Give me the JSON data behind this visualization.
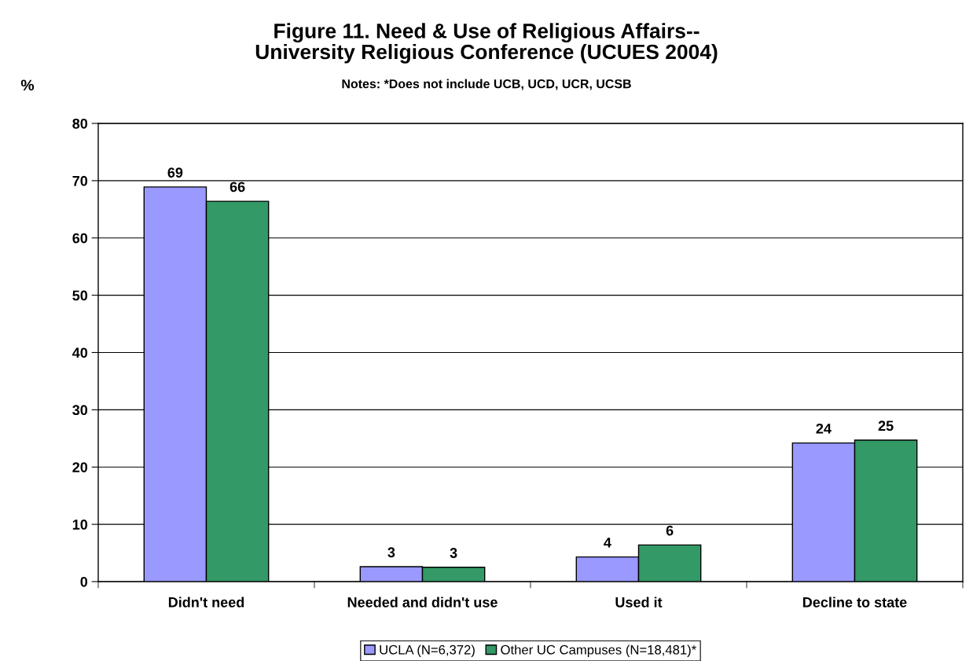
{
  "chart_data": {
    "type": "bar",
    "title": "Figure 11. Need & Use of Religious Affairs--\nUniversity Religious Conference (UCUES 2004)",
    "subtitle": "Notes: *Does not include UCB, UCD, UCR, UCSB",
    "ylabel": "%",
    "categories": [
      "Didn't need",
      "Needed and didn't use",
      "Used it",
      "Decline to state"
    ],
    "series": [
      {
        "name": "UCLA (N=6,372)",
        "color": "#9999ff",
        "values": [
          68.9,
          2.6,
          4.3,
          24.2
        ],
        "value_labels": [
          "69",
          "3",
          "4",
          "24"
        ]
      },
      {
        "name": "Other UC Campuses (N=18,481)*",
        "color": "#339966",
        "values": [
          66.4,
          2.5,
          6.4,
          24.7
        ],
        "value_labels": [
          "66",
          "3",
          "6",
          "25"
        ]
      }
    ],
    "ylim": [
      0,
      80
    ],
    "yticks": [
      0,
      10,
      20,
      30,
      40,
      50,
      60,
      70,
      80
    ],
    "grid": "y",
    "legend": "bottom"
  }
}
